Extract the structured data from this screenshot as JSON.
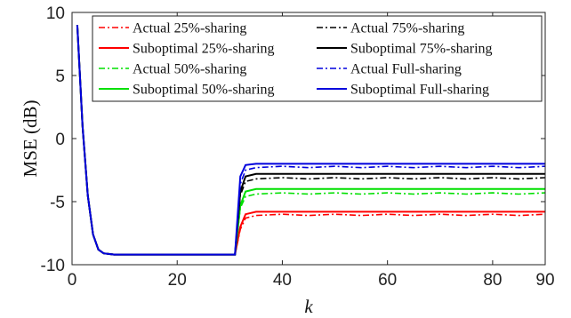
{
  "chart_data": {
    "type": "line",
    "xlabel": "k",
    "ylabel": "MSE (dB)",
    "xlim": [
      0,
      90
    ],
    "ylim": [
      -10,
      10
    ],
    "xticks": [
      0,
      20,
      40,
      60,
      80,
      90
    ],
    "yticks": [
      -10,
      -5,
      0,
      5,
      10
    ],
    "x_tick_labels": [
      "0",
      "20",
      "40",
      "60",
      "80",
      "90"
    ],
    "y_tick_labels": [
      "-10",
      "-5",
      "0",
      "5",
      "10"
    ],
    "grid": false,
    "legend_position": "top",
    "series": [
      {
        "name": "Actual 25%-sharing",
        "color": "#ff0000",
        "style": "dashdot",
        "x": [
          1,
          2,
          3,
          4,
          5,
          6,
          8,
          10,
          15,
          20,
          25,
          30,
          31,
          32,
          33,
          35,
          40,
          45,
          50,
          55,
          60,
          65,
          70,
          75,
          80,
          85,
          90
        ],
        "y": [
          9,
          1.0,
          -4.5,
          -7.6,
          -8.8,
          -9.1,
          -9.2,
          -9.2,
          -9.2,
          -9.2,
          -9.2,
          -9.2,
          -9.2,
          -7.2,
          -6.3,
          -6.1,
          -6.0,
          -6.1,
          -6.0,
          -6.1,
          -6.0,
          -6.1,
          -6.0,
          -6.1,
          -6.0,
          -6.1,
          -6.0
        ]
      },
      {
        "name": "Suboptimal 25%-sharing",
        "color": "#ff0000",
        "style": "solid",
        "x": [
          1,
          2,
          3,
          4,
          5,
          6,
          8,
          10,
          15,
          20,
          25,
          30,
          31,
          32,
          33,
          35,
          40,
          50,
          60,
          70,
          80,
          90
        ],
        "y": [
          9,
          1.0,
          -4.5,
          -7.6,
          -8.8,
          -9.1,
          -9.2,
          -9.2,
          -9.2,
          -9.2,
          -9.2,
          -9.2,
          -9.2,
          -7.0,
          -6.0,
          -5.8,
          -5.8,
          -5.8,
          -5.8,
          -5.8,
          -5.8,
          -5.8
        ]
      },
      {
        "name": "Actual 50%-sharing",
        "color": "#00e000",
        "style": "dashdot",
        "x": [
          1,
          2,
          3,
          4,
          5,
          6,
          8,
          10,
          15,
          20,
          25,
          30,
          31,
          32,
          33,
          35,
          40,
          45,
          50,
          55,
          60,
          65,
          70,
          75,
          80,
          85,
          90
        ],
        "y": [
          9,
          1.0,
          -4.5,
          -7.6,
          -8.8,
          -9.1,
          -9.2,
          -9.2,
          -9.2,
          -9.2,
          -9.2,
          -9.2,
          -9.2,
          -5.5,
          -4.6,
          -4.4,
          -4.3,
          -4.4,
          -4.3,
          -4.4,
          -4.3,
          -4.4,
          -4.3,
          -4.4,
          -4.3,
          -4.4,
          -4.3
        ]
      },
      {
        "name": "Suboptimal 50%-sharing",
        "color": "#00e000",
        "style": "solid",
        "x": [
          1,
          2,
          3,
          4,
          5,
          6,
          8,
          10,
          15,
          20,
          25,
          30,
          31,
          32,
          33,
          35,
          40,
          50,
          60,
          70,
          80,
          90
        ],
        "y": [
          9,
          1.0,
          -4.5,
          -7.6,
          -8.8,
          -9.1,
          -9.2,
          -9.2,
          -9.2,
          -9.2,
          -9.2,
          -9.2,
          -9.2,
          -5.3,
          -4.2,
          -4.0,
          -4.0,
          -4.0,
          -4.0,
          -4.0,
          -4.0,
          -4.0
        ]
      },
      {
        "name": "Actual 75%-sharing",
        "color": "#000000",
        "style": "dashdot",
        "x": [
          1,
          2,
          3,
          4,
          5,
          6,
          8,
          10,
          15,
          20,
          25,
          30,
          31,
          32,
          33,
          35,
          40,
          45,
          50,
          55,
          60,
          65,
          70,
          75,
          80,
          85,
          90
        ],
        "y": [
          9,
          1.0,
          -4.5,
          -7.6,
          -8.8,
          -9.1,
          -9.2,
          -9.2,
          -9.2,
          -9.2,
          -9.2,
          -9.2,
          -9.2,
          -4.5,
          -3.4,
          -3.2,
          -3.1,
          -3.2,
          -3.1,
          -3.2,
          -3.1,
          -3.2,
          -3.1,
          -3.2,
          -3.1,
          -3.2,
          -3.1
        ]
      },
      {
        "name": "Suboptimal 75%-sharing",
        "color": "#000000",
        "style": "solid",
        "x": [
          1,
          2,
          3,
          4,
          5,
          6,
          8,
          10,
          15,
          20,
          25,
          30,
          31,
          32,
          33,
          35,
          40,
          50,
          60,
          70,
          80,
          90
        ],
        "y": [
          9,
          1.0,
          -4.5,
          -7.6,
          -8.8,
          -9.1,
          -9.2,
          -9.2,
          -9.2,
          -9.2,
          -9.2,
          -9.2,
          -9.2,
          -4.2,
          -3.0,
          -2.8,
          -2.8,
          -2.8,
          -2.8,
          -2.8,
          -2.8,
          -2.8
        ]
      },
      {
        "name": "Actual Full-sharing",
        "color": "#0000dd",
        "style": "dashdot",
        "x": [
          1,
          2,
          3,
          4,
          5,
          6,
          8,
          10,
          15,
          20,
          25,
          30,
          31,
          32,
          33,
          35,
          40,
          45,
          50,
          55,
          60,
          65,
          70,
          75,
          80,
          85,
          90
        ],
        "y": [
          9,
          1.0,
          -4.5,
          -7.6,
          -8.8,
          -9.1,
          -9.2,
          -9.2,
          -9.2,
          -9.2,
          -9.2,
          -9.2,
          -9.2,
          -3.6,
          -2.5,
          -2.3,
          -2.2,
          -2.3,
          -2.2,
          -2.3,
          -2.2,
          -2.3,
          -2.2,
          -2.3,
          -2.2,
          -2.3,
          -2.2
        ]
      },
      {
        "name": "Suboptimal Full-sharing",
        "color": "#0000dd",
        "style": "solid",
        "x": [
          1,
          2,
          3,
          4,
          5,
          6,
          8,
          10,
          15,
          20,
          25,
          30,
          31,
          32,
          33,
          35,
          40,
          50,
          60,
          70,
          80,
          90
        ],
        "y": [
          9,
          1.0,
          -4.5,
          -7.6,
          -8.8,
          -9.1,
          -9.2,
          -9.2,
          -9.2,
          -9.2,
          -9.2,
          -9.2,
          -9.2,
          -3.0,
          -2.1,
          -2.0,
          -2.0,
          -2.0,
          -2.0,
          -2.0,
          -2.0,
          -2.0
        ]
      }
    ],
    "legend_order": [
      0,
      4,
      1,
      5,
      2,
      6,
      3,
      7
    ]
  }
}
